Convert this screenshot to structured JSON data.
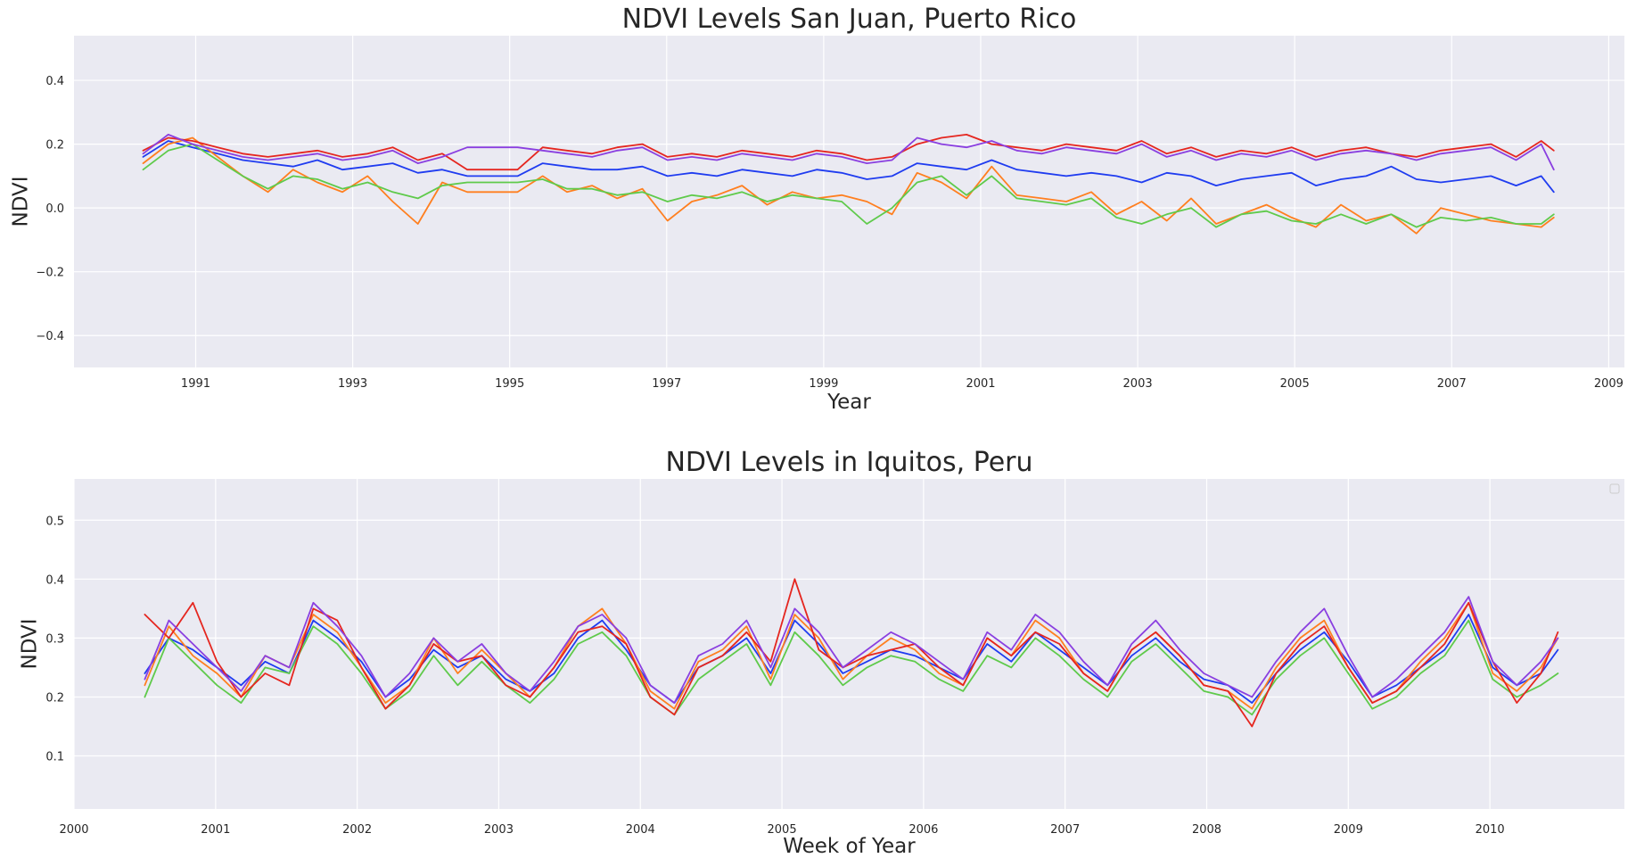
{
  "figure": {
    "background": "#ffffff",
    "plot_background": "#eaeaf2",
    "grid_color": "#ffffff"
  },
  "chart_data": [
    {
      "type": "line",
      "title": "NDVI Levels San Juan, Puerto Rico",
      "xlabel": "Year",
      "ylabel": "NDVI",
      "x_is_date": true,
      "xlim": [
        1989.45,
        2009.2
      ],
      "ylim": [
        -0.5,
        0.54
      ],
      "x_ticks": [
        1991,
        1993,
        1995,
        1997,
        1999,
        2001,
        2003,
        2005,
        2007,
        2009
      ],
      "x_tick_labels": [
        "1991",
        "1993",
        "1995",
        "1997",
        "1999",
        "2001",
        "2003",
        "2005",
        "2007",
        "2009"
      ],
      "y_ticks": [
        -0.4,
        -0.2,
        0.0,
        0.2,
        0.4
      ],
      "y_tick_labels": [
        "−0.4",
        "−0.2",
        "0.0",
        "0.2",
        "0.4"
      ],
      "grid": true,
      "legend": "none",
      "x": [
        1990.33,
        1990.65,
        1990.96,
        1991.28,
        1991.6,
        1991.92,
        1992.24,
        1992.55,
        1992.87,
        1993.19,
        1993.51,
        1993.83,
        1994.14,
        1994.46,
        1994.78,
        1995.1,
        1995.42,
        1995.73,
        1996.05,
        1996.37,
        1996.69,
        1997.01,
        1997.32,
        1997.64,
        1997.96,
        1998.28,
        1998.6,
        1998.91,
        1999.23,
        1999.55,
        1999.87,
        2000.19,
        2000.5,
        2000.82,
        2001.14,
        2001.46,
        2001.78,
        2002.09,
        2002.41,
        2002.73,
        2003.05,
        2003.37,
        2003.68,
        2004.0,
        2004.32,
        2004.64,
        2004.96,
        2005.27,
        2005.59,
        2005.91,
        2006.23,
        2006.55,
        2006.86,
        2007.18,
        2007.5,
        2007.82,
        2008.14,
        2008.3
      ],
      "series": [
        {
          "color": "#1f3cf0",
          "values": [
            0.16,
            0.21,
            0.19,
            0.17,
            0.15,
            0.14,
            0.13,
            0.15,
            0.12,
            0.13,
            0.14,
            0.11,
            0.12,
            0.1,
            0.1,
            0.1,
            0.14,
            0.13,
            0.12,
            0.12,
            0.13,
            0.1,
            0.11,
            0.1,
            0.12,
            0.11,
            0.1,
            0.12,
            0.11,
            0.09,
            0.1,
            0.14,
            0.13,
            0.12,
            0.15,
            0.12,
            0.11,
            0.1,
            0.11,
            0.1,
            0.08,
            0.11,
            0.1,
            0.07,
            0.09,
            0.1,
            0.11,
            0.07,
            0.09,
            0.1,
            0.13,
            0.09,
            0.08,
            0.09,
            0.1,
            0.07,
            0.1,
            0.05
          ]
        },
        {
          "color": "#ff7f1f",
          "values": [
            0.14,
            0.2,
            0.22,
            0.16,
            0.1,
            0.05,
            0.12,
            0.08,
            0.05,
            0.1,
            0.02,
            -0.05,
            0.08,
            0.05,
            0.05,
            0.05,
            0.1,
            0.05,
            0.07,
            0.03,
            0.06,
            -0.04,
            0.02,
            0.04,
            0.07,
            0.01,
            0.05,
            0.03,
            0.04,
            0.02,
            -0.02,
            0.11,
            0.08,
            0.03,
            0.13,
            0.04,
            0.03,
            0.02,
            0.05,
            -0.02,
            0.02,
            -0.04,
            0.03,
            -0.05,
            -0.02,
            0.01,
            -0.03,
            -0.06,
            0.01,
            -0.04,
            -0.02,
            -0.08,
            0.0,
            -0.02,
            -0.04,
            -0.05,
            -0.06,
            -0.03
          ]
        },
        {
          "color": "#5fca4b",
          "values": [
            0.12,
            0.18,
            0.2,
            0.15,
            0.1,
            0.06,
            0.1,
            0.09,
            0.06,
            0.08,
            0.05,
            0.03,
            0.07,
            0.08,
            0.08,
            0.08,
            0.09,
            0.06,
            0.06,
            0.04,
            0.05,
            0.02,
            0.04,
            0.03,
            0.05,
            0.02,
            0.04,
            0.03,
            0.02,
            -0.05,
            0.0,
            0.08,
            0.1,
            0.04,
            0.1,
            0.03,
            0.02,
            0.01,
            0.03,
            -0.03,
            -0.05,
            -0.02,
            0.0,
            -0.06,
            -0.02,
            -0.01,
            -0.04,
            -0.05,
            -0.02,
            -0.05,
            -0.02,
            -0.06,
            -0.03,
            -0.04,
            -0.03,
            -0.05,
            -0.05,
            -0.02
          ]
        },
        {
          "color": "#e5261f",
          "values": [
            0.18,
            0.22,
            0.21,
            0.19,
            0.17,
            0.16,
            0.17,
            0.18,
            0.16,
            0.17,
            0.19,
            0.15,
            0.17,
            0.12,
            0.12,
            0.12,
            0.19,
            0.18,
            0.17,
            0.19,
            0.2,
            0.16,
            0.17,
            0.16,
            0.18,
            0.17,
            0.16,
            0.18,
            0.17,
            0.15,
            0.16,
            0.2,
            0.22,
            0.23,
            0.2,
            0.19,
            0.18,
            0.2,
            0.19,
            0.18,
            0.21,
            0.17,
            0.19,
            0.16,
            0.18,
            0.17,
            0.19,
            0.16,
            0.18,
            0.19,
            0.17,
            0.16,
            0.18,
            0.19,
            0.2,
            0.16,
            0.21,
            0.18
          ]
        },
        {
          "color": "#8a3fe0",
          "values": [
            0.17,
            0.23,
            0.2,
            0.18,
            0.16,
            0.15,
            0.16,
            0.17,
            0.15,
            0.16,
            0.18,
            0.14,
            0.16,
            0.19,
            0.19,
            0.19,
            0.18,
            0.17,
            0.16,
            0.18,
            0.19,
            0.15,
            0.16,
            0.15,
            0.17,
            0.16,
            0.15,
            0.17,
            0.16,
            0.14,
            0.15,
            0.22,
            0.2,
            0.19,
            0.21,
            0.18,
            0.17,
            0.19,
            0.18,
            0.17,
            0.2,
            0.16,
            0.18,
            0.15,
            0.17,
            0.16,
            0.18,
            0.15,
            0.17,
            0.18,
            0.17,
            0.15,
            0.17,
            0.18,
            0.19,
            0.15,
            0.2,
            0.12
          ]
        }
      ]
    },
    {
      "type": "line",
      "title": "NDVI Levels in Iquitos, Peru",
      "xlabel": "Week of Year",
      "ylabel": "NDVI",
      "x_is_date": true,
      "xlim": [
        2000.0,
        2010.95
      ],
      "ylim": [
        0.01,
        0.57
      ],
      "x_ticks": [
        2000,
        2001,
        2002,
        2003,
        2004,
        2005,
        2006,
        2007,
        2008,
        2009,
        2010
      ],
      "x_tick_labels": [
        "2000",
        "2001",
        "2002",
        "2003",
        "2004",
        "2005",
        "2006",
        "2007",
        "2008",
        "2009",
        "2010"
      ],
      "y_ticks": [
        0.1,
        0.2,
        0.3,
        0.4,
        0.5
      ],
      "y_tick_labels": [
        "0.1",
        "0.2",
        "0.3",
        "0.4",
        "0.5"
      ],
      "grid": true,
      "legend": "top-right",
      "x": [
        2000.5,
        2000.67,
        2000.84,
        2001.01,
        2001.18,
        2001.35,
        2001.52,
        2001.69,
        2001.86,
        2002.03,
        2002.2,
        2002.37,
        2002.54,
        2002.71,
        2002.88,
        2003.05,
        2003.22,
        2003.39,
        2003.56,
        2003.73,
        2003.9,
        2004.07,
        2004.24,
        2004.41,
        2004.58,
        2004.75,
        2004.92,
        2005.09,
        2005.26,
        2005.43,
        2005.6,
        2005.77,
        2005.94,
        2006.11,
        2006.28,
        2006.45,
        2006.62,
        2006.79,
        2006.96,
        2007.13,
        2007.3,
        2007.47,
        2007.64,
        2007.81,
        2007.98,
        2008.15,
        2008.32,
        2008.49,
        2008.66,
        2008.83,
        2009.0,
        2009.17,
        2009.34,
        2009.51,
        2009.68,
        2009.85,
        2010.02,
        2010.19,
        2010.36,
        2010.48
      ],
      "series": [
        {
          "color": "#1f3cf0",
          "values": [
            0.24,
            0.3,
            0.28,
            0.25,
            0.22,
            0.26,
            0.24,
            0.33,
            0.3,
            0.26,
            0.2,
            0.23,
            0.28,
            0.25,
            0.27,
            0.23,
            0.21,
            0.24,
            0.3,
            0.33,
            0.28,
            0.22,
            0.19,
            0.25,
            0.27,
            0.3,
            0.24,
            0.33,
            0.29,
            0.24,
            0.26,
            0.28,
            0.27,
            0.25,
            0.23,
            0.29,
            0.26,
            0.31,
            0.28,
            0.25,
            0.22,
            0.27,
            0.3,
            0.26,
            0.23,
            0.22,
            0.19,
            0.24,
            0.28,
            0.31,
            0.26,
            0.2,
            0.22,
            0.25,
            0.28,
            0.34,
            0.25,
            0.22,
            0.24,
            0.28
          ]
        },
        {
          "color": "#ff7f1f",
          "values": [
            0.22,
            0.32,
            0.27,
            0.24,
            0.2,
            0.27,
            0.25,
            0.34,
            0.31,
            0.25,
            0.19,
            0.22,
            0.3,
            0.24,
            0.28,
            0.24,
            0.2,
            0.25,
            0.32,
            0.35,
            0.29,
            0.21,
            0.18,
            0.26,
            0.28,
            0.32,
            0.23,
            0.34,
            0.3,
            0.23,
            0.27,
            0.3,
            0.28,
            0.24,
            0.22,
            0.3,
            0.27,
            0.33,
            0.3,
            0.24,
            0.21,
            0.28,
            0.31,
            0.27,
            0.22,
            0.21,
            0.18,
            0.25,
            0.3,
            0.33,
            0.25,
            0.19,
            0.21,
            0.26,
            0.3,
            0.36,
            0.24,
            0.21,
            0.25,
            0.3
          ]
        },
        {
          "color": "#5fca4b",
          "values": [
            0.2,
            0.3,
            0.26,
            0.22,
            0.19,
            0.25,
            0.24,
            0.32,
            0.29,
            0.24,
            0.18,
            0.21,
            0.27,
            0.22,
            0.26,
            0.22,
            0.19,
            0.23,
            0.29,
            0.31,
            0.27,
            0.2,
            0.17,
            0.23,
            0.26,
            0.29,
            0.22,
            0.31,
            0.27,
            0.22,
            0.25,
            0.27,
            0.26,
            0.23,
            0.21,
            0.27,
            0.25,
            0.3,
            0.27,
            0.23,
            0.2,
            0.26,
            0.29,
            0.25,
            0.21,
            0.2,
            0.17,
            0.23,
            0.27,
            0.3,
            0.24,
            0.18,
            0.2,
            0.24,
            0.27,
            0.33,
            0.23,
            0.2,
            0.22,
            0.24
          ]
        },
        {
          "color": "#e5261f",
          "values": [
            0.34,
            0.3,
            0.36,
            0.26,
            0.2,
            0.24,
            0.22,
            0.35,
            0.33,
            0.25,
            0.18,
            0.22,
            0.29,
            0.26,
            0.27,
            0.22,
            0.2,
            0.25,
            0.31,
            0.32,
            0.29,
            0.2,
            0.17,
            0.25,
            0.27,
            0.31,
            0.26,
            0.4,
            0.28,
            0.25,
            0.27,
            0.28,
            0.29,
            0.25,
            0.22,
            0.3,
            0.27,
            0.31,
            0.29,
            0.24,
            0.21,
            0.28,
            0.31,
            0.27,
            0.22,
            0.21,
            0.15,
            0.24,
            0.29,
            0.32,
            0.25,
            0.19,
            0.21,
            0.25,
            0.29,
            0.36,
            0.26,
            0.19,
            0.24,
            0.31
          ]
        },
        {
          "color": "#8a3fe0",
          "values": [
            0.23,
            0.33,
            0.29,
            0.25,
            0.21,
            0.27,
            0.25,
            0.36,
            0.32,
            0.27,
            0.2,
            0.24,
            0.3,
            0.26,
            0.29,
            0.24,
            0.21,
            0.26,
            0.32,
            0.34,
            0.3,
            0.22,
            0.19,
            0.27,
            0.29,
            0.33,
            0.25,
            0.35,
            0.31,
            0.25,
            0.28,
            0.31,
            0.29,
            0.26,
            0.23,
            0.31,
            0.28,
            0.34,
            0.31,
            0.26,
            0.22,
            0.29,
            0.33,
            0.28,
            0.24,
            0.22,
            0.2,
            0.26,
            0.31,
            0.35,
            0.27,
            0.2,
            0.23,
            0.27,
            0.31,
            0.37,
            0.26,
            0.22,
            0.26,
            0.3
          ]
        }
      ]
    }
  ]
}
